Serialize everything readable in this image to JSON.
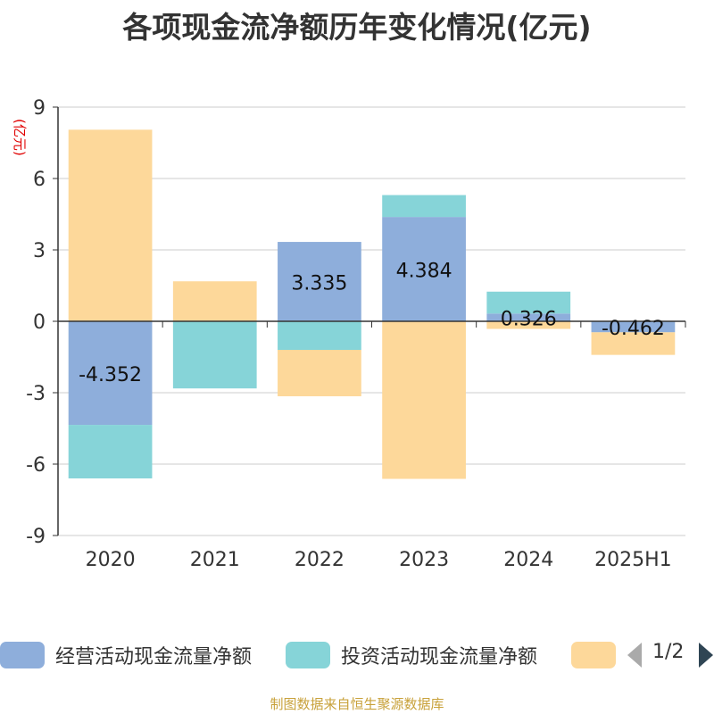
{
  "title": "各项现金流净额历年变化情况(亿元)",
  "y_unit": "(亿元)",
  "legend": {
    "items": [
      {
        "label": "经营活动现金流量净额",
        "color": "#8eaedb"
      },
      {
        "label": "投资活动现金流量净额",
        "color": "#86d4d8"
      },
      {
        "label": "",
        "color": "#fdd89a"
      }
    ],
    "page": "1/2"
  },
  "source": "制图数据来自恒生聚源数据库",
  "chart_data": {
    "type": "bar",
    "stacked": true,
    "categories": [
      "2020",
      "2021",
      "2022",
      "2023",
      "2024",
      "2025H1"
    ],
    "ylim": [
      -9,
      9
    ],
    "yticks": [
      9,
      6,
      3,
      0,
      -3,
      -6,
      -9
    ],
    "grid": true,
    "legend_position": "bottom",
    "series": [
      {
        "name": "经营活动现金流量净额",
        "color": "#8eaedb",
        "values": [
          -4.352,
          -0.02,
          3.335,
          4.384,
          0.326,
          -0.462
        ],
        "labels": [
          "-4.352",
          "",
          "3.335",
          "4.384",
          "0.326",
          "-0.462"
        ]
      },
      {
        "name": "投资活动现金流量净额",
        "color": "#86d4d8",
        "values": [
          -2.25,
          -2.8,
          -1.2,
          0.92,
          0.92,
          0.0
        ]
      },
      {
        "color": "#fdd89a",
        "values": [
          8.05,
          1.68,
          -1.95,
          -6.62,
          -0.32,
          -0.95
        ]
      }
    ]
  }
}
